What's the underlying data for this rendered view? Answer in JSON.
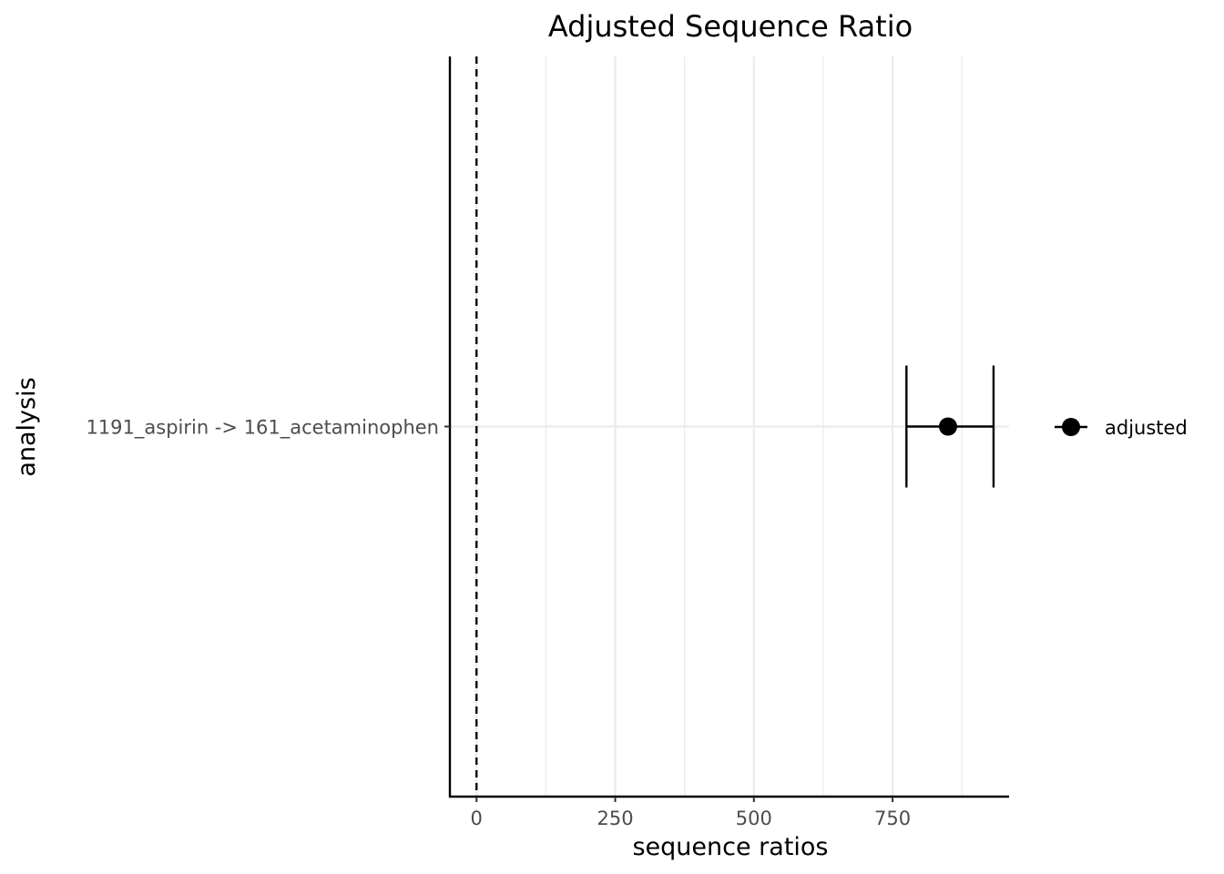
{
  "chart_data": {
    "type": "scatter",
    "title": "Adjusted Sequence Ratio",
    "xlabel": "sequence ratios",
    "ylabel": "analysis",
    "xlim": [
      -48,
      960
    ],
    "x_ticks": [
      0,
      250,
      500,
      750
    ],
    "x_tick_labels": [
      "0",
      "250",
      "500",
      "750"
    ],
    "x_minor_gridlines": [
      125,
      375,
      625,
      875
    ],
    "grid": true,
    "reference_line": {
      "x": 0,
      "style": "dashed"
    },
    "categories": [
      "1191_aspirin -> 161_acetaminophen"
    ],
    "series": [
      {
        "name": "adjusted",
        "points": [
          {
            "category": "1191_aspirin -> 161_acetaminophen",
            "x": 850,
            "lower": 775,
            "upper": 932
          }
        ]
      }
    ],
    "legend_position": "right",
    "colors": {
      "point": "#000000",
      "grid": "#ebebeb",
      "axis": "#000000",
      "tick_text": "#4d4d4d"
    }
  }
}
